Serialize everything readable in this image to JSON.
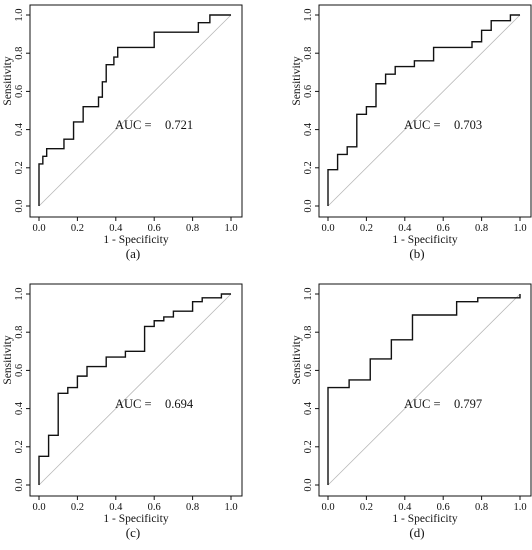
{
  "chart_data": [
    {
      "type": "line",
      "panel_label": "(a)",
      "xlabel": "1 - Specificity",
      "ylabel": "Sensitivity",
      "xlim": [
        0,
        1
      ],
      "ylim": [
        0,
        1
      ],
      "xticks": [
        "0.0",
        "0.2",
        "0.4",
        "0.6",
        "0.8",
        "1.0"
      ],
      "yticks": [
        "0.0",
        "0.2",
        "0.4",
        "0.6",
        "0.8",
        "1.0"
      ],
      "annotation_label": "AUC =",
      "annotation_value": "0.721",
      "reference_line": [
        [
          0,
          0
        ],
        [
          1,
          1
        ]
      ],
      "series": [
        {
          "x": [
            0,
            0,
            0.02,
            0.02,
            0.04,
            0.04,
            0.06,
            0.06,
            0.13,
            0.13,
            0.18,
            0.18,
            0.23,
            0.23,
            0.31,
            0.31,
            0.33,
            0.33,
            0.35,
            0.35,
            0.39,
            0.39,
            0.41,
            0.41,
            0.6,
            0.6,
            0.83,
            0.83,
            0.89,
            0.89,
            1.0
          ],
          "y": [
            0,
            0.22,
            0.22,
            0.26,
            0.26,
            0.3,
            0.3,
            0.3,
            0.3,
            0.35,
            0.35,
            0.44,
            0.44,
            0.52,
            0.52,
            0.57,
            0.57,
            0.65,
            0.65,
            0.74,
            0.74,
            0.78,
            0.78,
            0.83,
            0.83,
            0.91,
            0.91,
            0.96,
            0.96,
            1.0,
            1.0
          ]
        }
      ]
    },
    {
      "type": "line",
      "panel_label": "(b)",
      "xlabel": "1 - Specificity",
      "ylabel": "Sensitivity",
      "xlim": [
        0,
        1
      ],
      "ylim": [
        0,
        1
      ],
      "xticks": [
        "0.0",
        "0.2",
        "0.4",
        "0.6",
        "0.8",
        "1.0"
      ],
      "yticks": [
        "0.0",
        "0.2",
        "0.4",
        "0.6",
        "0.8",
        "1.0"
      ],
      "annotation_label": "AUC =",
      "annotation_value": "0.703",
      "reference_line": [
        [
          0,
          0
        ],
        [
          1,
          1
        ]
      ],
      "series": [
        {
          "x": [
            0,
            0,
            0.05,
            0.05,
            0.1,
            0.1,
            0.15,
            0.15,
            0.2,
            0.2,
            0.25,
            0.25,
            0.3,
            0.3,
            0.35,
            0.35,
            0.45,
            0.45,
            0.55,
            0.55,
            0.75,
            0.75,
            0.8,
            0.8,
            0.85,
            0.85,
            0.95,
            0.95,
            1.0
          ],
          "y": [
            0,
            0.19,
            0.19,
            0.27,
            0.27,
            0.31,
            0.31,
            0.48,
            0.48,
            0.52,
            0.52,
            0.64,
            0.64,
            0.69,
            0.69,
            0.73,
            0.73,
            0.76,
            0.76,
            0.83,
            0.83,
            0.86,
            0.86,
            0.92,
            0.92,
            0.97,
            0.97,
            1.0,
            1.0
          ]
        }
      ]
    },
    {
      "type": "line",
      "panel_label": "(c)",
      "xlabel": "1 - Specificity",
      "ylabel": "Sensitivity",
      "xlim": [
        0,
        1
      ],
      "ylim": [
        0,
        1
      ],
      "xticks": [
        "0.0",
        "0.2",
        "0.4",
        "0.6",
        "0.8",
        "1.0"
      ],
      "yticks": [
        "0.0",
        "0.2",
        "0.4",
        "0.6",
        "0.8",
        "1.0"
      ],
      "annotation_label": "AUC =",
      "annotation_value": "0.694",
      "reference_line": [
        [
          0,
          0
        ],
        [
          1,
          1
        ]
      ],
      "series": [
        {
          "x": [
            0,
            0,
            0.05,
            0.05,
            0.1,
            0.1,
            0.15,
            0.15,
            0.2,
            0.2,
            0.25,
            0.25,
            0.35,
            0.35,
            0.45,
            0.45,
            0.55,
            0.55,
            0.6,
            0.6,
            0.65,
            0.65,
            0.7,
            0.7,
            0.8,
            0.8,
            0.85,
            0.85,
            0.95,
            0.95,
            1.0
          ],
          "y": [
            0,
            0.15,
            0.15,
            0.26,
            0.26,
            0.48,
            0.48,
            0.51,
            0.51,
            0.57,
            0.57,
            0.62,
            0.62,
            0.67,
            0.67,
            0.7,
            0.7,
            0.83,
            0.83,
            0.86,
            0.86,
            0.88,
            0.88,
            0.91,
            0.91,
            0.96,
            0.96,
            0.98,
            0.98,
            1.0,
            1.0
          ]
        }
      ]
    },
    {
      "type": "line",
      "panel_label": "(d)",
      "xlabel": "1 - Specificity",
      "ylabel": "Sensitivity",
      "xlim": [
        0,
        1
      ],
      "ylim": [
        0,
        1
      ],
      "xticks": [
        "0.0",
        "0.2",
        "0.4",
        "0.6",
        "0.8",
        "1.0"
      ],
      "yticks": [
        "0.0",
        "0.2",
        "0.4",
        "0.6",
        "0.8",
        "1.0"
      ],
      "annotation_label": "AUC =",
      "annotation_value": "0.797",
      "reference_line": [
        [
          0,
          0
        ],
        [
          1,
          1
        ]
      ],
      "series": [
        {
          "x": [
            0,
            0,
            0.11,
            0.11,
            0.22,
            0.22,
            0.33,
            0.33,
            0.44,
            0.44,
            0.67,
            0.67,
            0.78,
            0.78,
            1.0,
            1.0
          ],
          "y": [
            0,
            0.51,
            0.51,
            0.55,
            0.55,
            0.66,
            0.66,
            0.76,
            0.76,
            0.89,
            0.89,
            0.96,
            0.96,
            0.98,
            0.98,
            1.0
          ]
        }
      ]
    }
  ]
}
